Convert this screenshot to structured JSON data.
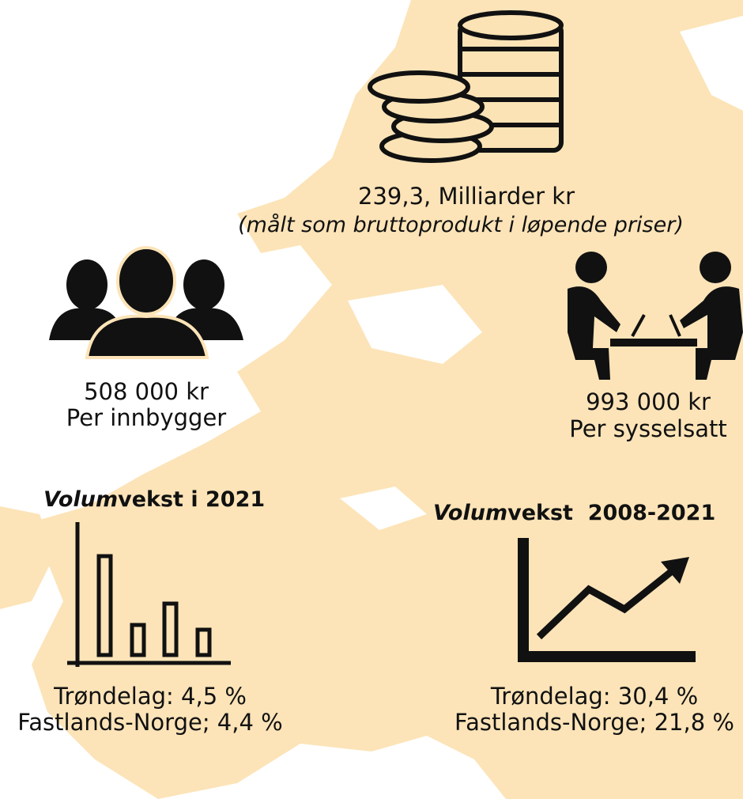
{
  "main": {
    "value": "239,3, Milliarder kr",
    "note": "(målt som bruttoprodukt i løpende priser)"
  },
  "per_resident": {
    "value": "508 000 kr",
    "label": "Per innbygger"
  },
  "per_employee": {
    "value": "993 000 kr",
    "label": "Per sysselsatt"
  },
  "growth_2021": {
    "title": [
      "Volum",
      "vekst i 2021"
    ],
    "lines": [
      "Trøndelag: 4,5 %",
      "Fastlands-Norge; 4,4 %"
    ]
  },
  "growth_period": {
    "title": [
      "Volum",
      "vekst  2008-2021"
    ],
    "lines": [
      "Trøndelag: 30,4 %",
      "Fastlands-Norge; 21,8 %"
    ]
  }
}
